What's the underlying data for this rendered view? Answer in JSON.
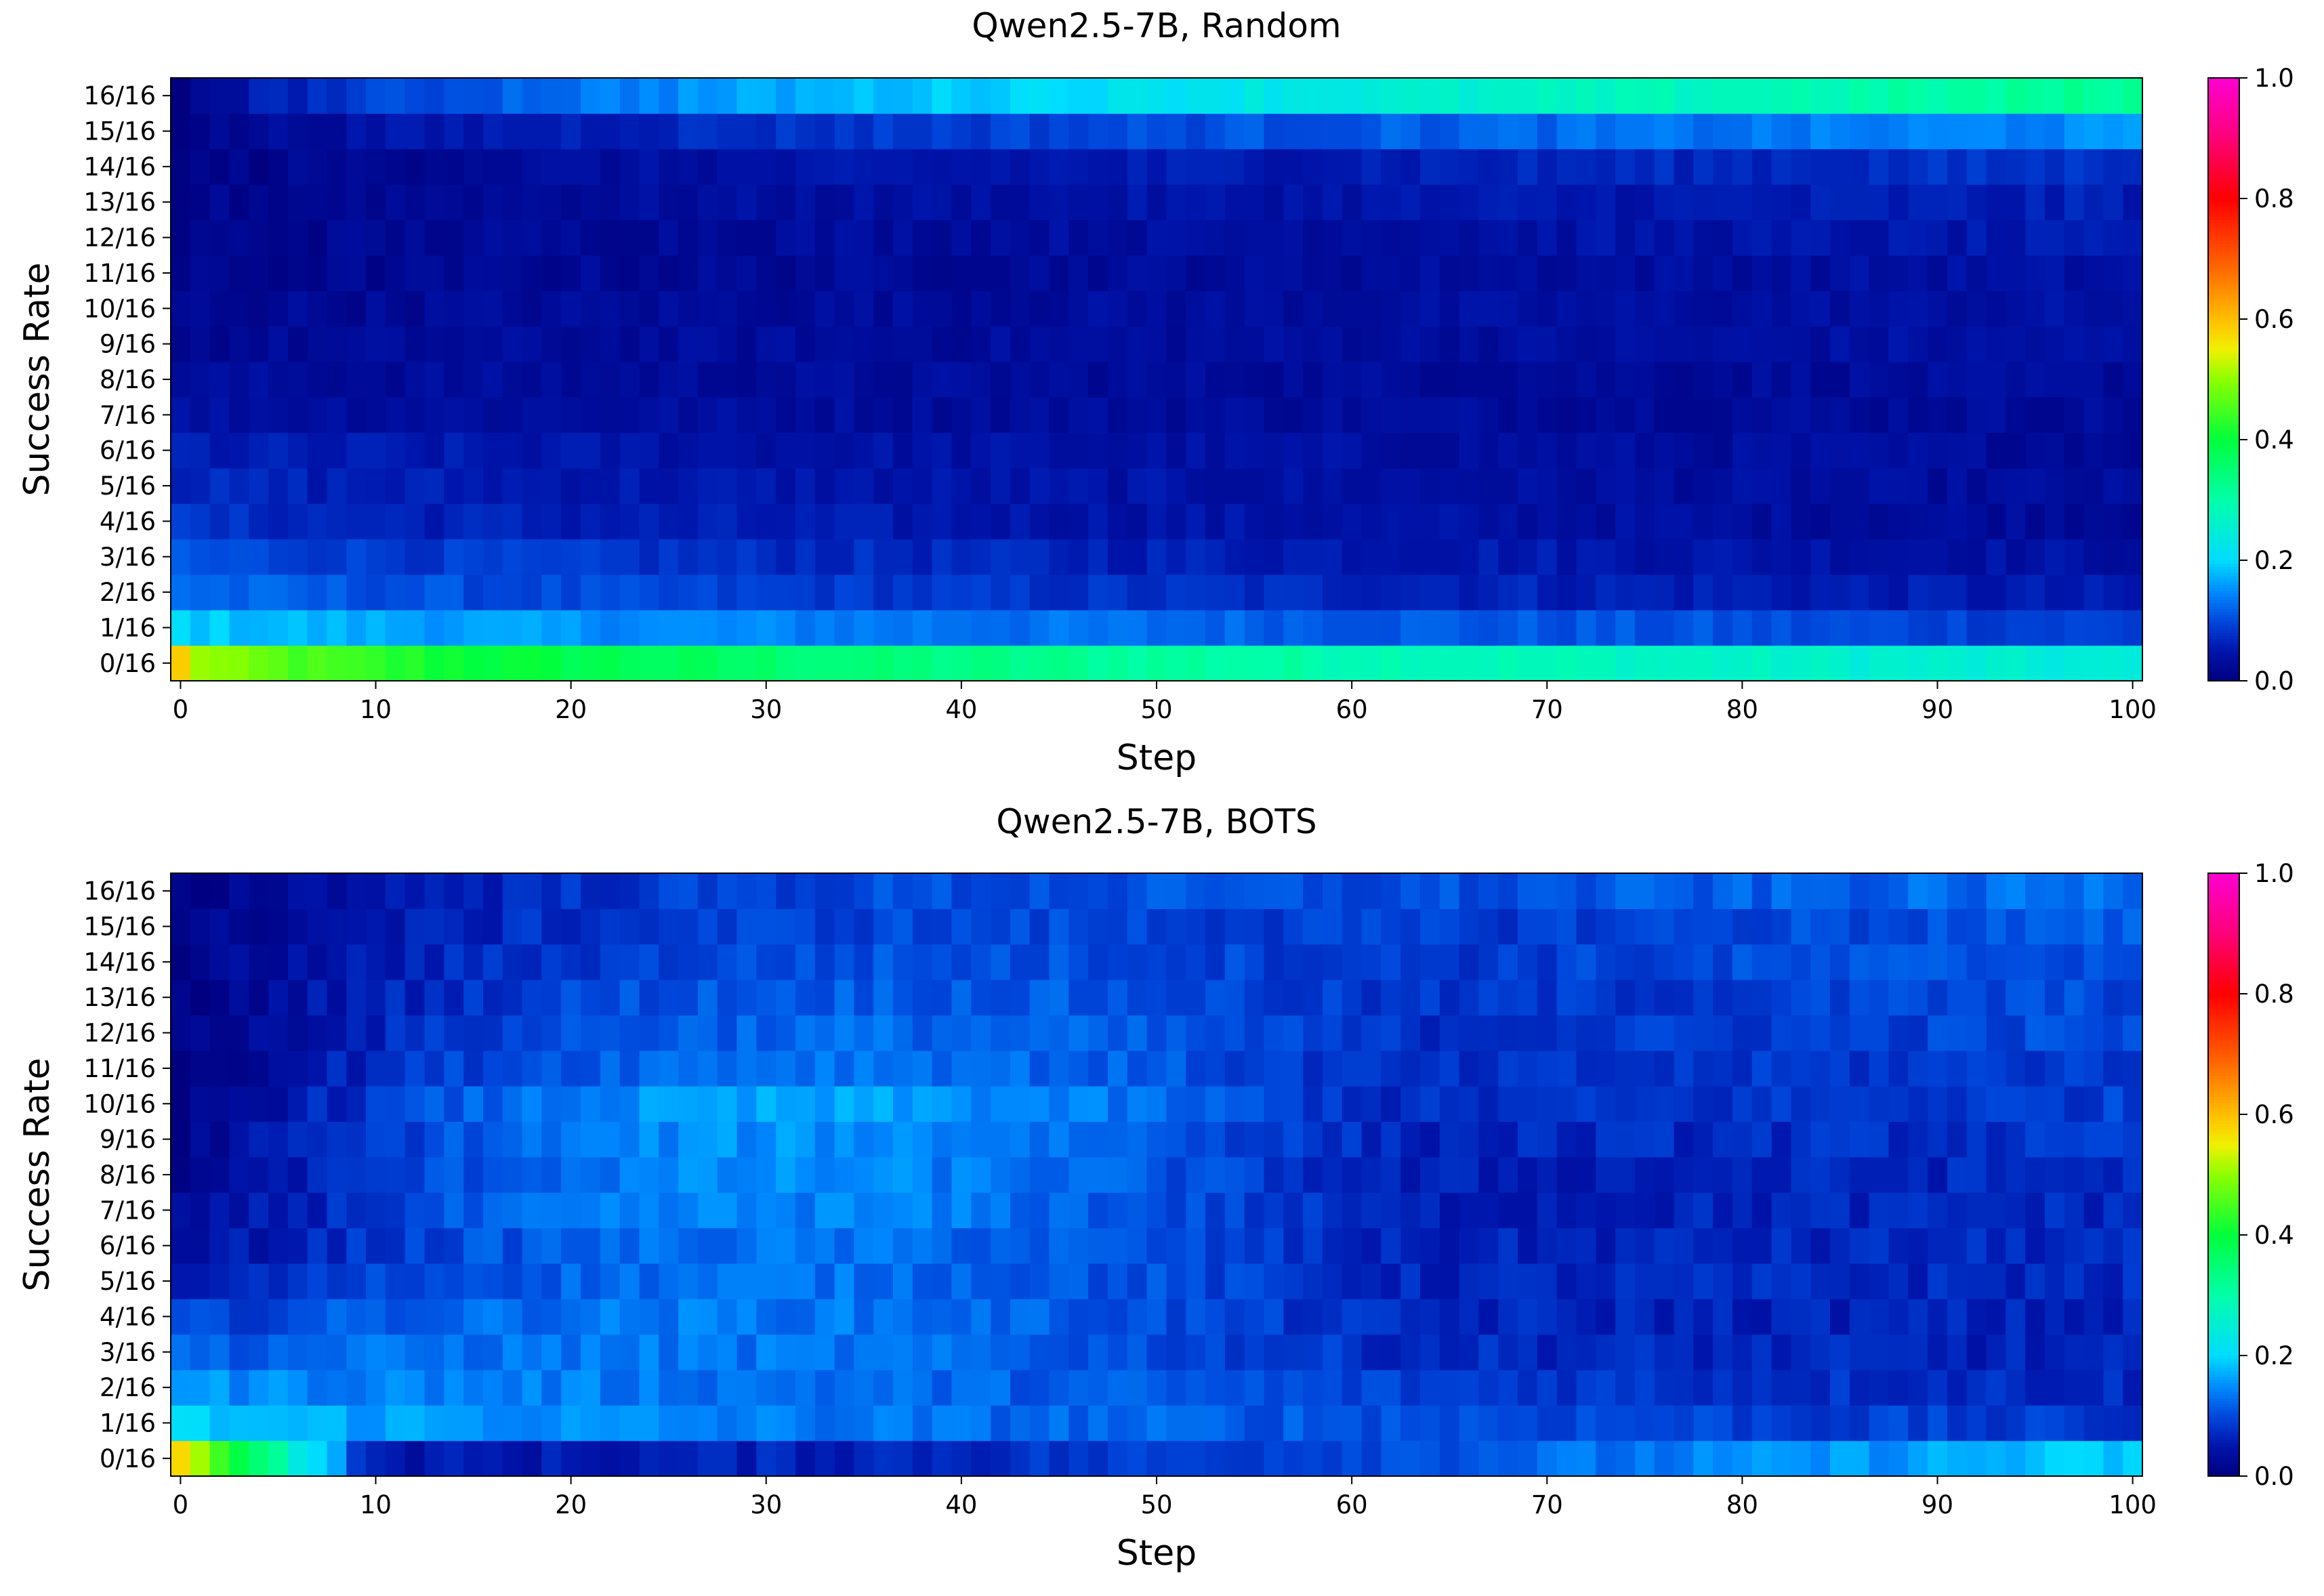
{
  "chart_data": [
    {
      "type": "heatmap",
      "title": "Qwen2.5-7B, Random",
      "xlabel": "Step",
      "ylabel": "Success Rate",
      "x_range": [
        0,
        100
      ],
      "x_ticks": [
        "0",
        "10",
        "20",
        "30",
        "40",
        "50",
        "60",
        "70",
        "80",
        "90",
        "100"
      ],
      "y_categories": [
        "0/16",
        "1/16",
        "2/16",
        "3/16",
        "4/16",
        "5/16",
        "6/16",
        "7/16",
        "8/16",
        "9/16",
        "10/16",
        "11/16",
        "12/16",
        "13/16",
        "14/16",
        "15/16",
        "16/16"
      ],
      "value_range": [
        0.0,
        1.0
      ],
      "colorbar_ticks": [
        "0.0",
        "0.2",
        "0.4",
        "0.6",
        "0.8",
        "1.0"
      ],
      "colormap": "gist_rainbow_r",
      "trend": {
        "start": [
          0.58,
          0.2,
          0.13,
          0.11,
          0.08,
          0.07,
          0.06,
          0.04,
          0.03,
          0.02,
          0.02,
          0.01,
          0.01,
          0.01,
          0.0,
          0.0,
          0.0
        ],
        "end": [
          0.24,
          0.09,
          0.05,
          0.04,
          0.03,
          0.03,
          0.03,
          0.03,
          0.03,
          0.04,
          0.04,
          0.04,
          0.05,
          0.06,
          0.08,
          0.15,
          0.32
        ],
        "bump": [
          0.0,
          0.0,
          0.0,
          0.0,
          0.0,
          0.0,
          0.0,
          0.0,
          0.0,
          0.0,
          0.0,
          0.0,
          0.0,
          0.0,
          0.0,
          0.0,
          0.0
        ],
        "noise": 0.015
      }
    },
    {
      "type": "heatmap",
      "title": "Qwen2.5-7B, BOTS",
      "xlabel": "Step",
      "ylabel": "Success Rate",
      "x_range": [
        0,
        100
      ],
      "x_ticks": [
        "0",
        "10",
        "20",
        "30",
        "40",
        "50",
        "60",
        "70",
        "80",
        "90",
        "100"
      ],
      "y_categories": [
        "0/16",
        "1/16",
        "2/16",
        "3/16",
        "4/16",
        "5/16",
        "6/16",
        "7/16",
        "8/16",
        "9/16",
        "10/16",
        "11/16",
        "12/16",
        "13/16",
        "14/16",
        "15/16",
        "16/16"
      ],
      "value_range": [
        0.0,
        1.0
      ],
      "colorbar_ticks": [
        "0.0",
        "0.2",
        "0.4",
        "0.6",
        "0.8",
        "1.0"
      ],
      "colormap": "gist_rainbow_r",
      "trend": {
        "start": [
          0.56,
          0.2,
          0.16,
          0.12,
          0.09,
          0.05,
          0.03,
          0.02,
          0.01,
          0.01,
          0.0,
          0.0,
          0.0,
          0.0,
          0.0,
          0.0,
          0.0
        ],
        "end": [
          0.19,
          0.08,
          0.07,
          0.06,
          0.06,
          0.07,
          0.07,
          0.07,
          0.07,
          0.08,
          0.09,
          0.09,
          0.1,
          0.1,
          0.11,
          0.11,
          0.13
        ],
        "bump": [
          -0.14,
          0.0,
          0.02,
          0.05,
          0.07,
          0.08,
          0.09,
          0.11,
          0.12,
          0.12,
          0.13,
          0.1,
          0.08,
          0.07,
          0.05,
          0.04,
          0.03
        ],
        "noise": 0.02
      }
    }
  ]
}
